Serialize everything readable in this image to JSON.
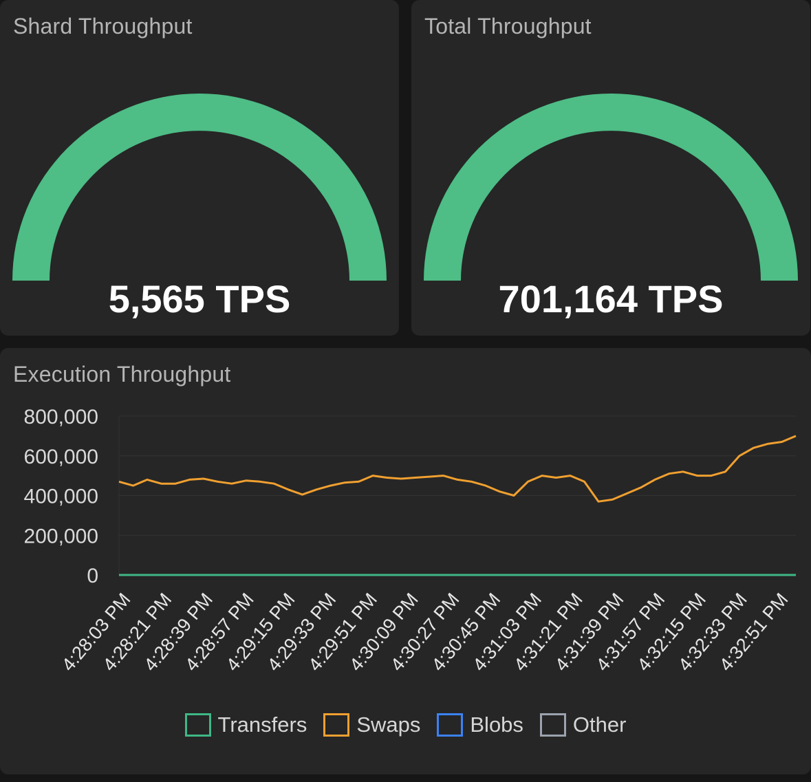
{
  "gauges": {
    "shard": {
      "title": "Shard Throughput",
      "value_label": "5,565 TPS",
      "color": "#4ebd86"
    },
    "total": {
      "title": "Total Throughput",
      "value_label": "701,164 TPS",
      "color": "#4ebd86"
    }
  },
  "execution": {
    "title": "Execution Throughput"
  },
  "chart_data": {
    "type": "line",
    "title": "Execution Throughput",
    "xlabel": "",
    "ylabel": "",
    "ylim": [
      0,
      800000
    ],
    "y_ticks": [
      0,
      200000,
      400000,
      600000,
      800000
    ],
    "y_tick_labels": [
      "0",
      "200,000",
      "400,000",
      "600,000",
      "800,000"
    ],
    "x_tick_labels": [
      "4:28:03 PM",
      "4:28:21 PM",
      "4:28:39 PM",
      "4:28:57 PM",
      "4:29:15 PM",
      "4:29:33 PM",
      "4:29:51 PM",
      "4:30:09 PM",
      "4:30:27 PM",
      "4:30:45 PM",
      "4:31:03 PM",
      "4:31:21 PM",
      "4:31:39 PM",
      "4:31:57 PM",
      "4:32:15 PM",
      "4:32:33 PM",
      "4:32:51 PM"
    ],
    "grid": true,
    "legend_position": "bottom",
    "series": [
      {
        "name": "Transfers",
        "color": "#3fb886",
        "values": [
          0,
          0,
          0,
          0,
          0,
          0,
          0,
          0,
          0,
          0,
          0,
          0,
          0,
          0,
          0,
          0,
          0,
          0,
          0,
          0,
          0,
          0,
          0,
          0,
          0,
          0,
          0,
          0,
          0,
          0,
          0,
          0,
          0,
          0
        ]
      },
      {
        "name": "Swaps",
        "color": "#f0a030",
        "values": [
          470000,
          450000,
          480000,
          460000,
          460000,
          480000,
          485000,
          470000,
          460000,
          475000,
          470000,
          460000,
          430000,
          405000,
          430000,
          450000,
          465000,
          470000,
          500000,
          490000,
          485000,
          490000,
          495000,
          500000,
          480000,
          470000,
          450000,
          420000,
          400000,
          470000,
          500000,
          490000,
          500000,
          470000,
          370000,
          380000,
          410000,
          440000,
          480000,
          510000,
          520000,
          500000,
          500000,
          520000,
          600000,
          640000,
          660000,
          670000,
          700000
        ]
      },
      {
        "name": "Blobs",
        "color": "#3b82f6",
        "values": []
      },
      {
        "name": "Other",
        "color": "#9ca3af",
        "values": []
      }
    ]
  }
}
